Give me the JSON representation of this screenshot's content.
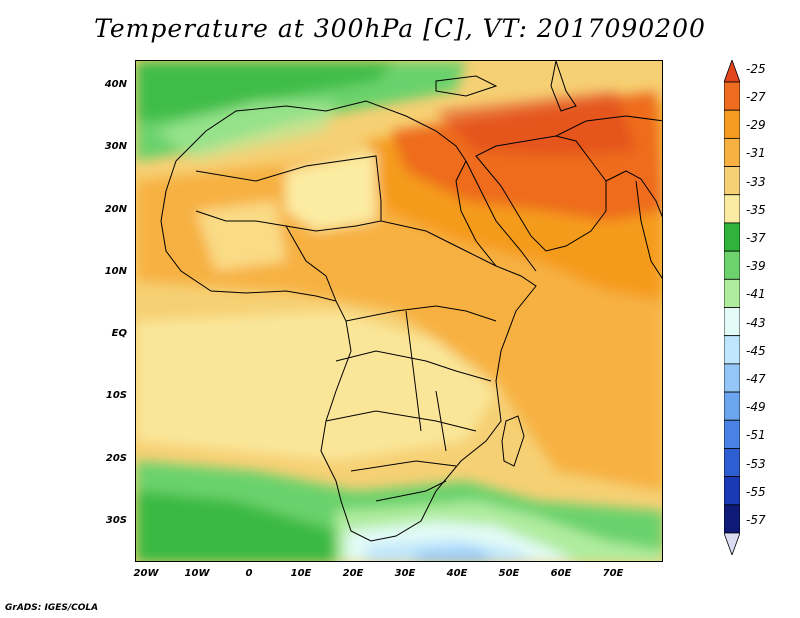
{
  "title": "Temperature at 300hPa [C], VT: 2017090200",
  "credit": "GrADS: IGES/COLA",
  "map": {
    "region": "Africa, Middle East, South Asia",
    "variable": "Temperature",
    "level": "300hPa",
    "units": "C",
    "valid_time": "2017090200",
    "lat_labels": [
      "40N",
      "30N",
      "20N",
      "10N",
      "EQ",
      "10S",
      "20S",
      "30S"
    ],
    "lon_labels": [
      "20W",
      "10W",
      "0",
      "10E",
      "20E",
      "30E",
      "40E",
      "50E",
      "60E",
      "70E"
    ]
  },
  "legend": {
    "labels": [
      "-25",
      "-27",
      "-29",
      "-31",
      "-33",
      "-35",
      "-37",
      "-39",
      "-41",
      "-43",
      "-45",
      "-47",
      "-49",
      "-51",
      "-53",
      "-55",
      "-57"
    ],
    "colors": [
      "#e0451c",
      "#ee6c1f",
      "#f59b1f",
      "#f7b143",
      "#f6d074",
      "#fbeca3",
      "#2fb33a",
      "#6bd26c",
      "#b0ec9f",
      "#e3fbf6",
      "#bfe6fd",
      "#94c7f7",
      "#6ba5ee",
      "#4a82e6",
      "#2e5fd2",
      "#1a3ab5",
      "#0e1978"
    ]
  }
}
